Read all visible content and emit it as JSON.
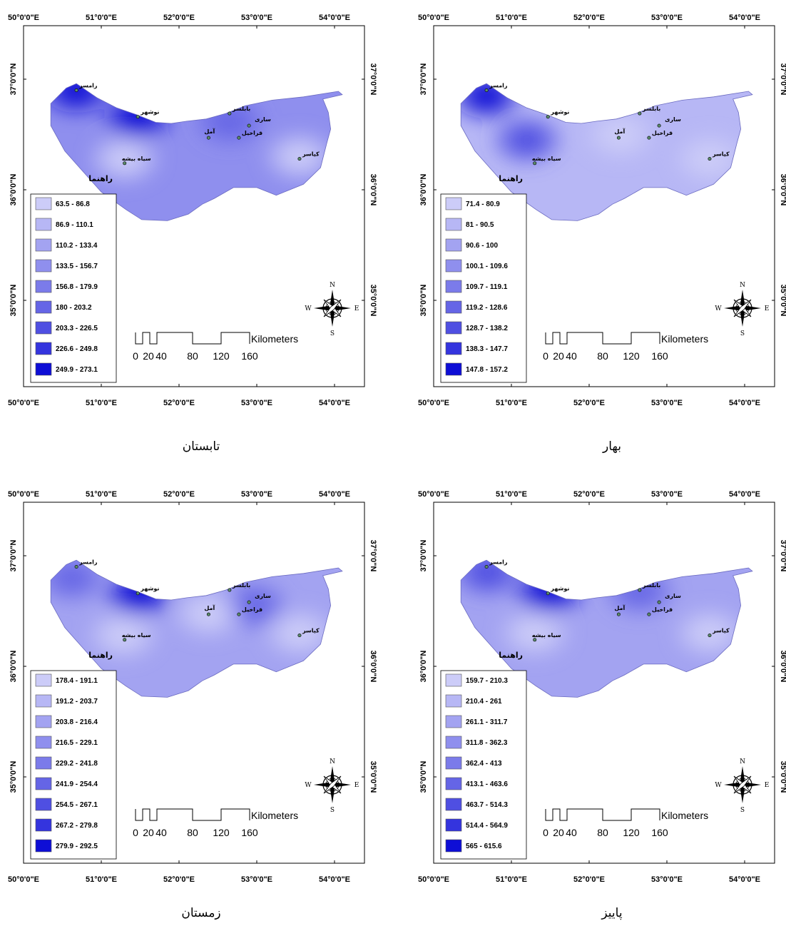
{
  "longitude_labels": [
    "50°0'0\"E",
    "51°0'0\"E",
    "52°0'0\"E",
    "53°0'0\"E",
    "54°0'0\"E"
  ],
  "latitude_labels": [
    "37°0'0\"N",
    "36°0'0\"N",
    "35°0'0\"N"
  ],
  "legend_title": "راهنما",
  "scale_bar": {
    "unit": "Kilometers",
    "ticks": [
      "0",
      "20",
      "40",
      "80",
      "120",
      "160"
    ]
  },
  "compass": {
    "n": "N",
    "s": "S",
    "e": "E",
    "w": "W"
  },
  "cities": [
    "رامسر",
    "نوشهر",
    "بابلسر",
    "ساری",
    "آمل",
    "قراخیل",
    "سیاه بیشه",
    "کیاسر"
  ],
  "colors": {
    "ramp": [
      "#ccccf8",
      "#b7b7f5",
      "#a3a3f1",
      "#8f8fee",
      "#7b7bea",
      "#6565e6",
      "#4f4fe2",
      "#3434de",
      "#0e0ed6"
    ],
    "frame": "#000000"
  },
  "maps": [
    {
      "season": "تابستان",
      "classes": [
        "63.5 - 86.8",
        "86.9 - 110.1",
        "110.2 - 133.4",
        "133.5 - 156.7",
        "156.8 - 179.9",
        "180 - 203.2",
        "203.3 - 226.5",
        "226.6 - 249.8",
        "249.9 - 273.1"
      ],
      "base_class": 3,
      "blobs": [
        {
          "lon": 50.68,
          "lat": 36.9,
          "class": 8
        },
        {
          "lon": 51.46,
          "lat": 36.65,
          "class": 8
        },
        {
          "lon": 52.65,
          "lat": 36.62,
          "class": 5
        },
        {
          "lon": 51.3,
          "lat": 36.28,
          "class": 0
        },
        {
          "lon": 53.55,
          "lat": 36.3,
          "class": 0
        }
      ]
    },
    {
      "season": "بهار",
      "classes": [
        "71.4 - 80.9",
        "81 - 90.5",
        "90.6 - 100",
        "100.1 - 109.6",
        "109.7 - 119.1",
        "119.2 - 128.6",
        "128.7 - 138.2",
        "138.3 - 147.7",
        "147.8 - 157.2"
      ],
      "base_class": 1,
      "blobs": [
        {
          "lon": 50.68,
          "lat": 36.85,
          "class": 8
        },
        {
          "lon": 51.2,
          "lat": 36.45,
          "class": 6
        },
        {
          "lon": 52.4,
          "lat": 36.5,
          "class": 0
        },
        {
          "lon": 53.55,
          "lat": 36.28,
          "class": 0
        }
      ]
    },
    {
      "season": "زمستان",
      "classes": [
        "178.4 - 191.1",
        "191.2 - 203.7",
        "203.8 - 216.4",
        "216.5 - 229.1",
        "229.2 - 241.8",
        "241.9 - 254.4",
        "254.5 - 267.1",
        "267.2 - 279.8",
        "279.9 - 292.5"
      ],
      "base_class": 2,
      "blobs": [
        {
          "lon": 51.48,
          "lat": 36.65,
          "class": 8
        },
        {
          "lon": 50.62,
          "lat": 36.8,
          "class": 5
        },
        {
          "lon": 52.95,
          "lat": 36.55,
          "class": 5
        },
        {
          "lon": 51.28,
          "lat": 36.28,
          "class": 0
        },
        {
          "lon": 52.38,
          "lat": 36.48,
          "class": 0
        },
        {
          "lon": 53.55,
          "lat": 36.3,
          "class": 0
        }
      ]
    },
    {
      "season": "پاییز",
      "classes": [
        "159.7 - 210.3",
        "210.4 - 261",
        "261.1 - 311.7",
        "311.8 - 362.3",
        "362.4 - 413",
        "413.1 - 463.6",
        "463.7 - 514.3",
        "514.4 - 564.9",
        "565 - 615.6"
      ],
      "base_class": 2,
      "blobs": [
        {
          "lon": 51.48,
          "lat": 36.67,
          "class": 8
        },
        {
          "lon": 50.7,
          "lat": 36.85,
          "class": 6
        },
        {
          "lon": 52.65,
          "lat": 36.68,
          "class": 5
        },
        {
          "lon": 51.3,
          "lat": 36.3,
          "class": 0
        },
        {
          "lon": 53.55,
          "lat": 36.3,
          "class": 0
        }
      ]
    }
  ]
}
